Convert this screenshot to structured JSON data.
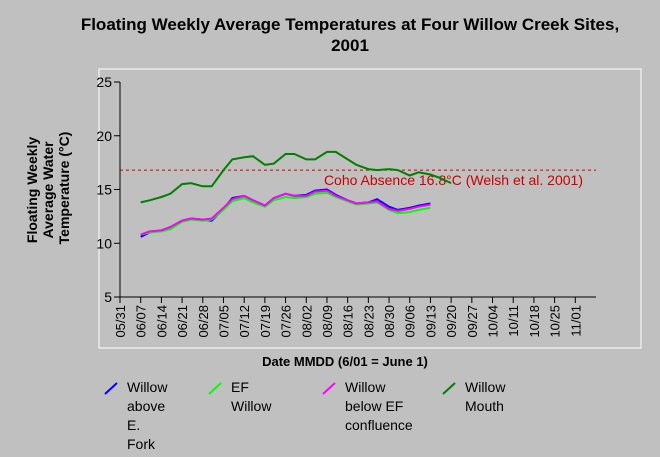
{
  "chart_data": {
    "type": "line",
    "title": "Floating Weekly Average Temperatures at Four Willow Creek Sites, 2001",
    "xlabel": "Date MMDD (6/01 = June 1)",
    "ylabel": "Floating Weekly Average Water Temperature (°C)",
    "ylim": [
      5,
      25
    ],
    "yticks": [
      5,
      10,
      15,
      20,
      25
    ],
    "x_ticks": [
      "05/31",
      "06/07",
      "06/14",
      "06/21",
      "06/28",
      "07/05",
      "07/12",
      "07/19",
      "07/26",
      "08/02",
      "08/09",
      "08/16",
      "08/23",
      "08/30",
      "09/06",
      "09/13",
      "09/20",
      "09/27",
      "10/04",
      "10/11",
      "10/18",
      "10/25",
      "11/01"
    ],
    "x_start_label": "05/31",
    "x_end_day": 161,
    "reference_line": {
      "value": 16.8,
      "label": "Coho Absence 16.8°C (Welsh et al. 2001)",
      "color": "#cc0000"
    },
    "series": [
      {
        "name": "Willow above E. Fork",
        "color": "#0000ff",
        "x": [
          7,
          10,
          14,
          17,
          21,
          24,
          28,
          31,
          35,
          38,
          42,
          45,
          49,
          52,
          56,
          59,
          63,
          66,
          70,
          73,
          77,
          80,
          84,
          87,
          91,
          94,
          98,
          101,
          105
        ],
        "y": [
          10.6,
          11.0,
          11.2,
          11.5,
          12.1,
          12.3,
          12.2,
          12.1,
          13.2,
          14.2,
          14.4,
          14.0,
          13.5,
          14.2,
          14.6,
          14.4,
          14.5,
          14.9,
          15.0,
          14.5,
          14.0,
          13.7,
          13.8,
          14.1,
          13.4,
          13.1,
          13.3,
          13.5,
          13.7
        ]
      },
      {
        "name": "EF Willow",
        "color": "#00ff00",
        "x": [
          7,
          10,
          14,
          17,
          21,
          24,
          28,
          31,
          35,
          38,
          42,
          45,
          49,
          52,
          56,
          59,
          63,
          66,
          70,
          73,
          77,
          80,
          84,
          87,
          91,
          94,
          98,
          101,
          105
        ],
        "y": [
          10.8,
          11.0,
          11.1,
          11.3,
          12.0,
          12.2,
          12.1,
          12.2,
          13.1,
          13.9,
          14.2,
          13.8,
          13.4,
          14.0,
          14.3,
          14.2,
          14.3,
          14.6,
          14.7,
          14.3,
          13.9,
          13.6,
          13.7,
          13.8,
          13.1,
          12.8,
          12.9,
          13.1,
          13.3
        ]
      },
      {
        "name": "Willow below EF confluence",
        "color": "#ff00ff",
        "x": [
          7,
          10,
          14,
          17,
          21,
          24,
          28,
          31,
          35,
          38,
          42,
          45,
          49,
          52,
          56,
          59,
          63,
          66,
          70,
          73,
          77,
          80,
          84,
          87,
          91,
          94,
          98,
          101,
          105
        ],
        "y": [
          10.8,
          11.1,
          11.2,
          11.5,
          12.1,
          12.3,
          12.2,
          12.3,
          13.3,
          14.1,
          14.4,
          14.0,
          13.5,
          14.2,
          14.6,
          14.4,
          14.4,
          14.8,
          14.9,
          14.4,
          14.0,
          13.7,
          13.8,
          13.9,
          13.2,
          13.0,
          13.2,
          13.4,
          13.6
        ]
      },
      {
        "name": "Willow Mouth",
        "color": "#008000",
        "x": [
          7,
          10,
          14,
          17,
          21,
          24,
          28,
          31,
          35,
          38,
          42,
          45,
          49,
          52,
          56,
          59,
          63,
          66,
          70,
          73,
          77,
          80,
          84,
          87,
          91,
          94,
          98,
          101,
          105,
          108,
          112
        ],
        "y": [
          13.8,
          14.0,
          14.3,
          14.6,
          15.5,
          15.6,
          15.3,
          15.3,
          16.8,
          17.8,
          18.0,
          18.1,
          17.3,
          17.4,
          18.3,
          18.3,
          17.8,
          17.8,
          18.5,
          18.5,
          17.8,
          17.3,
          16.9,
          16.8,
          16.9,
          16.8,
          16.3,
          16.6,
          16.4,
          16.1,
          15.6
        ]
      }
    ],
    "legend_position": "bottom"
  },
  "legend": [
    {
      "lines": [
        "Willow",
        "above E.",
        "Fork"
      ],
      "color": "#0000ff",
      "icon": "line-icon"
    },
    {
      "lines": [
        "EF Willow"
      ],
      "color": "#00ff00",
      "icon": "line-icon"
    },
    {
      "lines": [
        "Willow",
        "below EF",
        "confluence"
      ],
      "color": "#ff00ff",
      "icon": "line-icon"
    },
    {
      "lines": [
        "Willow",
        "Mouth"
      ],
      "color": "#008000",
      "icon": "line-icon"
    }
  ],
  "ylabel_lines": [
    "Floating Weekly",
    "Average Water",
    "Temperature (°C)"
  ]
}
